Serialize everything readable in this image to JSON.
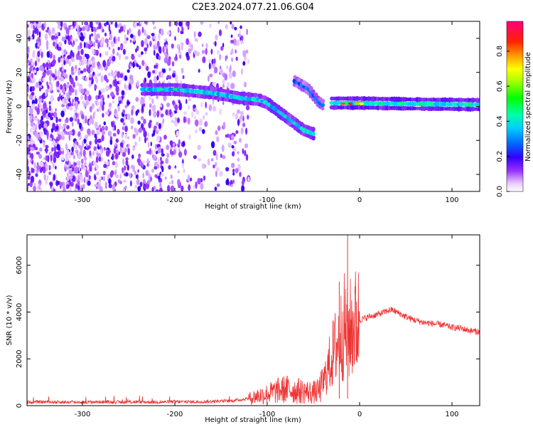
{
  "title": "C2E3.2024.077.21.06.G04",
  "colors": {
    "snr_line": "#ee3333",
    "colormap": [
      "#ffffff",
      "#e6c8ff",
      "#8a2be2",
      "#0000ff",
      "#00c8ff",
      "#00ff00",
      "#ffff00",
      "#ff8800",
      "#ff0000",
      "#ff0080"
    ]
  },
  "chart_data": [
    {
      "type": "heatmap",
      "xlabel": "Height of straight line (km)",
      "ylabel": "Frequency (Hz)",
      "xlim": [
        -360,
        130
      ],
      "ylim": [
        -50,
        50
      ],
      "xticks": [
        -300,
        -200,
        -100,
        0,
        100
      ],
      "yticks": [
        -40,
        -20,
        0,
        20,
        40
      ],
      "colorbar": {
        "label": "Normalized spectral amplitude",
        "range": [
          0,
          0.97
        ],
        "ticks": [
          0.0,
          0.2,
          0.4,
          0.6,
          0.8
        ]
      },
      "features": [
        {
          "name": "noise",
          "x_range": [
            -360,
            -120
          ],
          "y_range": [
            -50,
            50
          ]
        },
        {
          "name": "trace",
          "points": [
            [
              -235,
              10
            ],
            [
              -200,
              10
            ],
            [
              -160,
              8
            ],
            [
              -130,
              5
            ],
            [
              -110,
              4
            ],
            [
              -100,
              2
            ],
            [
              -90,
              -2
            ],
            [
              -80,
              -6
            ],
            [
              -70,
              -10
            ],
            [
              -60,
              -14
            ],
            [
              -50,
              -16
            ]
          ]
        },
        {
          "name": "branch",
          "points": [
            [
              -70,
              15
            ],
            [
              -55,
              10
            ],
            [
              -45,
              3
            ],
            [
              -38,
              0
            ]
          ]
        },
        {
          "name": "carrier",
          "points": [
            [
              -30,
              2
            ],
            [
              0,
              2
            ],
            [
              50,
              1.5
            ],
            [
              130,
              1
            ]
          ]
        }
      ]
    },
    {
      "type": "line",
      "xlabel": "Height of straight line (km)",
      "ylabel": "SNR (10 * v/v)",
      "xlim": [
        -360,
        130
      ],
      "ylim": [
        0,
        7300
      ],
      "xticks": [
        -300,
        -200,
        -100,
        0,
        100
      ],
      "yticks": [
        0,
        2000,
        4000,
        6000
      ],
      "series": [
        {
          "x": [
            -360,
            -340,
            -320,
            -300,
            -280,
            -260,
            -240,
            -220,
            -200,
            -180,
            -160,
            -140,
            -130,
            -120,
            -110,
            -100,
            -90,
            -80,
            -70,
            -60,
            -50,
            -45,
            -40,
            -35,
            -30,
            -25,
            -20,
            -17,
            -15,
            -13,
            -10,
            -5,
            0,
            10,
            20,
            30,
            35,
            40,
            50,
            60,
            70,
            80,
            90,
            100,
            110,
            120,
            130
          ],
          "y": [
            150,
            160,
            150,
            150,
            160,
            150,
            160,
            150,
            170,
            160,
            180,
            200,
            250,
            300,
            420,
            500,
            620,
            700,
            650,
            600,
            560,
            600,
            900,
            1500,
            2100,
            2600,
            3000,
            3400,
            3200,
            3000,
            3250,
            3500,
            3650,
            3800,
            3900,
            4050,
            4100,
            4000,
            3800,
            3650,
            3550,
            3500,
            3450,
            3350,
            3300,
            3200,
            3150
          ]
        }
      ],
      "spikes": [
        {
          "x": -22,
          "y": 5300
        },
        {
          "x": -13,
          "y": 7300
        }
      ]
    }
  ]
}
